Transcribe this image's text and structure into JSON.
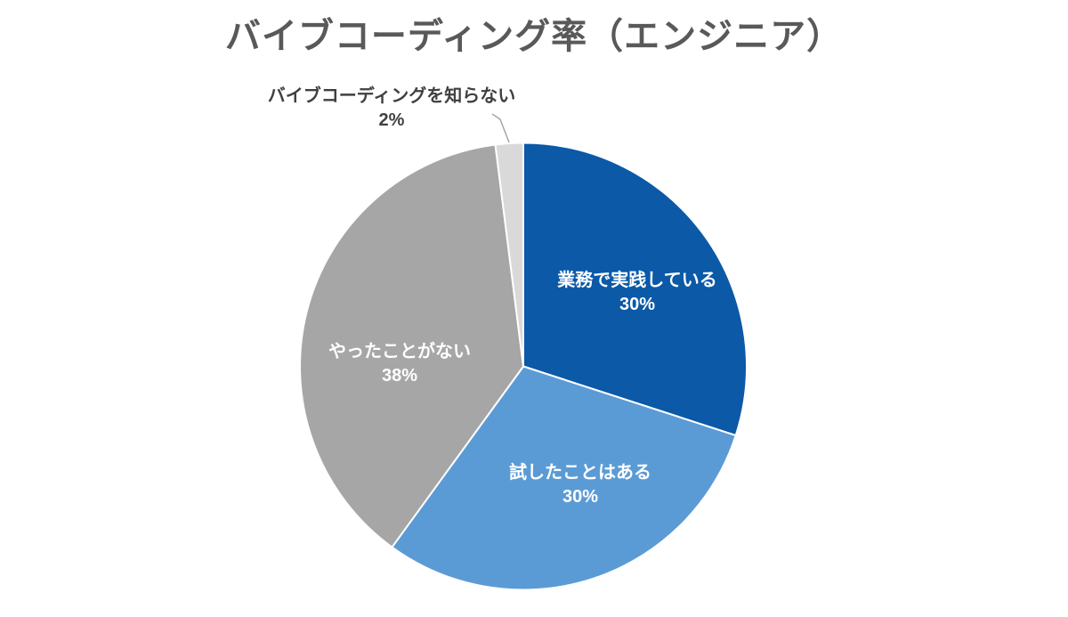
{
  "title": "バイブコーディング率（エンジニア）",
  "colors": {
    "background": "#FFFFFF",
    "title_text": "#595959",
    "inside_label_text": "#FFFFFF",
    "outside_label_text": "#404040",
    "leader_line": "#A6A6A6",
    "slice_border": "#FFFFFF"
  },
  "chart_data": {
    "type": "pie",
    "title": "バイブコーディング率（エンジニア）",
    "start_angle_deg": 0,
    "direction": "clockwise",
    "legend": "none",
    "data_label_style": "category name + percentage",
    "slices": [
      {
        "label": "業務で実践している",
        "value": 30,
        "pct_label": "30%",
        "color": "#0B59A7",
        "label_position": "inside"
      },
      {
        "label": "試したことはある",
        "value": 30,
        "pct_label": "30%",
        "color": "#5B9BD5",
        "label_position": "inside"
      },
      {
        "label": "やったことがない",
        "value": 38,
        "pct_label": "38%",
        "color": "#A6A6A6",
        "label_position": "inside"
      },
      {
        "label": "バイブコーディングを知らない",
        "value": 2,
        "pct_label": "2%",
        "color": "#D9D9D9",
        "label_position": "outside-with-leader-line"
      }
    ]
  }
}
